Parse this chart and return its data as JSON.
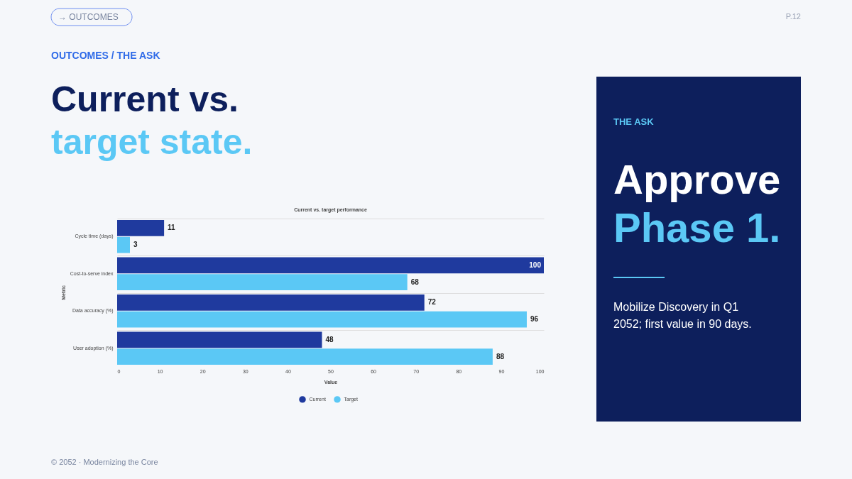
{
  "chart_data": {
    "type": "bar",
    "orientation": "horizontal",
    "title": "Current vs. target performance",
    "xlabel": "Value",
    "ylabel": "Metric",
    "categories": [
      "Cycle time (days)",
      "Cost-to-serve index",
      "Data accuracy (%)",
      "User adoption (%)"
    ],
    "series": [
      {
        "name": "Current",
        "color": "#1f3a9e",
        "values": [
          11,
          100,
          72,
          48
        ]
      },
      {
        "name": "Target",
        "color": "#5bc8f5",
        "values": [
          3,
          68,
          96,
          88
        ]
      }
    ],
    "xlim": [
      0,
      100
    ],
    "xticks": [
      0,
      10,
      20,
      30,
      40,
      50,
      60,
      70,
      80,
      90,
      100
    ],
    "grid": "y",
    "legend": "bottom",
    "data_labels": true,
    "annotations": [
      "→ OUTCOMES",
      "P.12",
      "OUTCOMES / THE ASK",
      "Current vs.",
      "target state.",
      "THE ASK",
      "Approve",
      "Phase 1.",
      "Mobilize Discovery in Q1",
      "2052; first value in 90 days.",
      "© 2052 · Modernizing the Core"
    ]
  }
}
